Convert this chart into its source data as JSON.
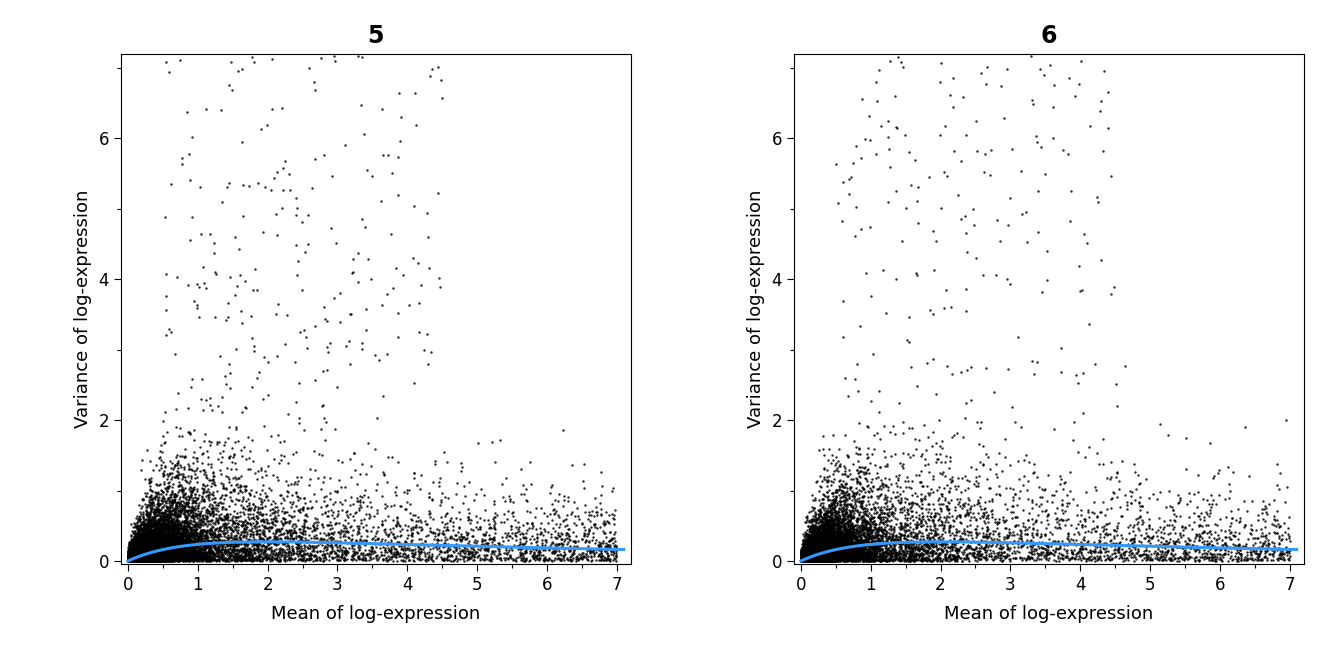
{
  "panels": [
    {
      "title": "5",
      "xlim": [
        -0.1,
        7.2
      ],
      "ylim": [
        -0.05,
        7.2
      ],
      "xticks": [
        0,
        1,
        2,
        3,
        4,
        5,
        6,
        7
      ],
      "yticks": [
        0,
        2,
        4,
        6
      ],
      "xlabel": "Mean of log-expression",
      "ylabel": "Variance of log-expression"
    },
    {
      "title": "6",
      "xlim": [
        -0.1,
        7.2
      ],
      "ylim": [
        -0.05,
        7.2
      ],
      "xticks": [
        0,
        1,
        2,
        3,
        4,
        5,
        6,
        7
      ],
      "yticks": [
        0,
        2,
        4,
        6
      ],
      "xlabel": "Mean of log-expression",
      "ylabel": "Variance of log-expression"
    }
  ],
  "dot_color": "#000000",
  "dot_size": 3,
  "dot_alpha": 0.85,
  "trend_color": "#3399ff",
  "trend_linewidth": 2.2,
  "background_color": "#ffffff",
  "title_fontsize": 17,
  "label_fontsize": 13,
  "tick_fontsize": 12,
  "n_genes": 14000,
  "n_genes2": 12000
}
